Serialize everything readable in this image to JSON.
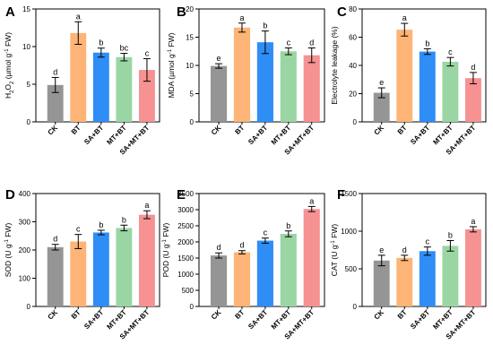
{
  "chart_data": [
    {
      "type": "bar",
      "letter": "A",
      "ylabel": "H2O2 (µmol g-1 FW)",
      "ylim": [
        0,
        15
      ],
      "yticks": [
        0,
        5,
        10,
        15
      ],
      "categories": [
        "CK",
        "BT",
        "SA+BT",
        "MT+BT",
        "SA+MT+BT"
      ],
      "values": [
        4.9,
        11.8,
        9.2,
        8.6,
        6.9
      ],
      "errors": [
        1.0,
        1.5,
        0.6,
        0.5,
        1.5
      ],
      "significance": [
        "d",
        "a",
        "b",
        "bc",
        "c"
      ]
    },
    {
      "type": "bar",
      "letter": "B",
      "ylabel": "MDA (µmol g-1 FW)",
      "ylim": [
        0,
        20
      ],
      "yticks": [
        0,
        5,
        10,
        15,
        20
      ],
      "categories": [
        "CK",
        "BT",
        "SA+BT",
        "MT+BT",
        "SA+MT+BT"
      ],
      "values": [
        9.9,
        16.7,
        14.1,
        12.5,
        11.8
      ],
      "errors": [
        0.4,
        0.8,
        2.0,
        0.6,
        1.3
      ],
      "significance": [
        "e",
        "a",
        "b",
        "c",
        "d"
      ]
    },
    {
      "type": "bar",
      "letter": "C",
      "ylabel": "Electrolyte leakage (%)",
      "ylim": [
        0,
        80
      ],
      "yticks": [
        0,
        20,
        40,
        60,
        80
      ],
      "categories": [
        "CK",
        "BT",
        "SA+BT",
        "MT+BT",
        "SA+MT+BT"
      ],
      "values": [
        20.6,
        65.3,
        49.8,
        42.6,
        31.0
      ],
      "errors": [
        3.5,
        4.5,
        2.0,
        3.0,
        4.0
      ],
      "significance": [
        "e",
        "a",
        "b",
        "c",
        "d"
      ]
    },
    {
      "type": "bar",
      "letter": "D",
      "ylabel": "SOD (U g-1 FW)",
      "ylim": [
        0,
        400
      ],
      "yticks": [
        0,
        100,
        200,
        300,
        400
      ],
      "categories": [
        "CK",
        "BT",
        "SA+BT",
        "MT+BT",
        "SA+MT+BT"
      ],
      "values": [
        210,
        230,
        262,
        278,
        325
      ],
      "errors": [
        10,
        25,
        8,
        10,
        14
      ],
      "significance": [
        "d",
        "c",
        "b",
        "b",
        "a"
      ]
    },
    {
      "type": "bar",
      "letter": "E",
      "ylabel": "POD (U g-1 FW)",
      "ylim": [
        0,
        3500
      ],
      "yticks": [
        0,
        500,
        1000,
        1500,
        2000,
        2500,
        3000,
        3500
      ],
      "categories": [
        "CK",
        "BT",
        "SA+BT",
        "MT+BT",
        "SA+MT+BT"
      ],
      "values": [
        1580,
        1680,
        2040,
        2250,
        3020
      ],
      "errors": [
        80,
        50,
        80,
        90,
        80
      ],
      "significance": [
        "d",
        "d",
        "c",
        "b",
        "a"
      ]
    },
    {
      "type": "bar",
      "letter": "F",
      "ylabel": "CAT (U g-1 FW)",
      "ylim": [
        0,
        1500
      ],
      "yticks": [
        0,
        500,
        1000,
        1500
      ],
      "categories": [
        "CK",
        "BT",
        "SA+BT",
        "MT+BT",
        "SA+MT+BT"
      ],
      "values": [
        610,
        645,
        735,
        805,
        1025
      ],
      "errors": [
        70,
        35,
        55,
        70,
        35
      ],
      "significance": [
        "e",
        "d",
        "c",
        "b",
        "a"
      ]
    }
  ],
  "colors": [
    "#959595",
    "#fdb476",
    "#2f8df6",
    "#9ad6a4",
    "#f69292"
  ],
  "grid": false,
  "legend": "none"
}
